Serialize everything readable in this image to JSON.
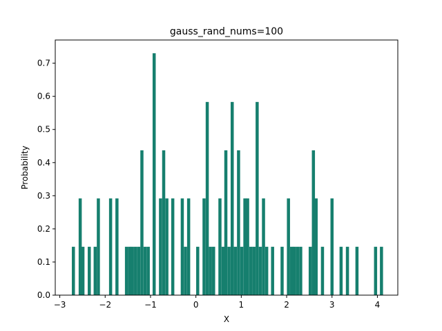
{
  "chart_data": {
    "type": "bar",
    "title": "gauss_rand_nums=100",
    "xlabel": "X",
    "ylabel": "Probability",
    "xlim": [
      -3.1,
      4.45
    ],
    "ylim": [
      0.0,
      0.77
    ],
    "xticks": [
      -3,
      -2,
      -1,
      0,
      1,
      2,
      3,
      4
    ],
    "xtick_labels": [
      "−3",
      "−2",
      "−1",
      "0",
      "1",
      "2",
      "3",
      "4"
    ],
    "yticks": [
      0.0,
      0.1,
      0.2,
      0.3,
      0.4,
      0.5,
      0.6,
      0.7
    ],
    "ytick_labels": [
      "0.0",
      "0.1",
      "0.2",
      "0.3",
      "0.4",
      "0.5",
      "0.6",
      "0.7"
    ],
    "bin_width": 0.0686,
    "bar_color": "#167f6e",
    "grid": false,
    "bars": [
      {
        "x": -2.7,
        "y": 0.146
      },
      {
        "x": -2.55,
        "y": 0.292
      },
      {
        "x": -2.49,
        "y": 0.146
      },
      {
        "x": -2.35,
        "y": 0.146
      },
      {
        "x": -2.22,
        "y": 0.146
      },
      {
        "x": -2.15,
        "y": 0.292
      },
      {
        "x": -1.88,
        "y": 0.292
      },
      {
        "x": -1.74,
        "y": 0.292
      },
      {
        "x": -1.53,
        "y": 0.146
      },
      {
        "x": -1.46,
        "y": 0.146
      },
      {
        "x": -1.4,
        "y": 0.146
      },
      {
        "x": -1.33,
        "y": 0.146
      },
      {
        "x": -1.26,
        "y": 0.146
      },
      {
        "x": -1.19,
        "y": 0.437
      },
      {
        "x": -1.12,
        "y": 0.146
      },
      {
        "x": -1.05,
        "y": 0.146
      },
      {
        "x": -0.92,
        "y": 0.73
      },
      {
        "x": -0.78,
        "y": 0.292
      },
      {
        "x": -0.71,
        "y": 0.437
      },
      {
        "x": -0.64,
        "y": 0.292
      },
      {
        "x": -0.51,
        "y": 0.292
      },
      {
        "x": -0.3,
        "y": 0.292
      },
      {
        "x": -0.23,
        "y": 0.146
      },
      {
        "x": -0.16,
        "y": 0.292
      },
      {
        "x": 0.04,
        "y": 0.146
      },
      {
        "x": 0.18,
        "y": 0.292
      },
      {
        "x": 0.25,
        "y": 0.583
      },
      {
        "x": 0.32,
        "y": 0.146
      },
      {
        "x": 0.39,
        "y": 0.146
      },
      {
        "x": 0.53,
        "y": 0.292
      },
      {
        "x": 0.6,
        "y": 0.146
      },
      {
        "x": 0.66,
        "y": 0.437
      },
      {
        "x": 0.73,
        "y": 0.146
      },
      {
        "x": 0.8,
        "y": 0.583
      },
      {
        "x": 0.87,
        "y": 0.146
      },
      {
        "x": 0.94,
        "y": 0.437
      },
      {
        "x": 1.01,
        "y": 0.146
      },
      {
        "x": 1.08,
        "y": 0.292
      },
      {
        "x": 1.14,
        "y": 0.292
      },
      {
        "x": 1.21,
        "y": 0.146
      },
      {
        "x": 1.28,
        "y": 0.146
      },
      {
        "x": 1.35,
        "y": 0.583
      },
      {
        "x": 1.42,
        "y": 0.146
      },
      {
        "x": 1.49,
        "y": 0.292
      },
      {
        "x": 1.56,
        "y": 0.146
      },
      {
        "x": 1.69,
        "y": 0.146
      },
      {
        "x": 1.9,
        "y": 0.146
      },
      {
        "x": 2.04,
        "y": 0.292
      },
      {
        "x": 2.11,
        "y": 0.146
      },
      {
        "x": 2.17,
        "y": 0.146
      },
      {
        "x": 2.24,
        "y": 0.146
      },
      {
        "x": 2.31,
        "y": 0.146
      },
      {
        "x": 2.52,
        "y": 0.146
      },
      {
        "x": 2.59,
        "y": 0.437
      },
      {
        "x": 2.65,
        "y": 0.292
      },
      {
        "x": 2.79,
        "y": 0.146
      },
      {
        "x": 3.0,
        "y": 0.292
      },
      {
        "x": 3.2,
        "y": 0.146
      },
      {
        "x": 3.34,
        "y": 0.146
      },
      {
        "x": 3.55,
        "y": 0.146
      },
      {
        "x": 3.96,
        "y": 0.146
      },
      {
        "x": 4.09,
        "y": 0.146
      }
    ]
  }
}
